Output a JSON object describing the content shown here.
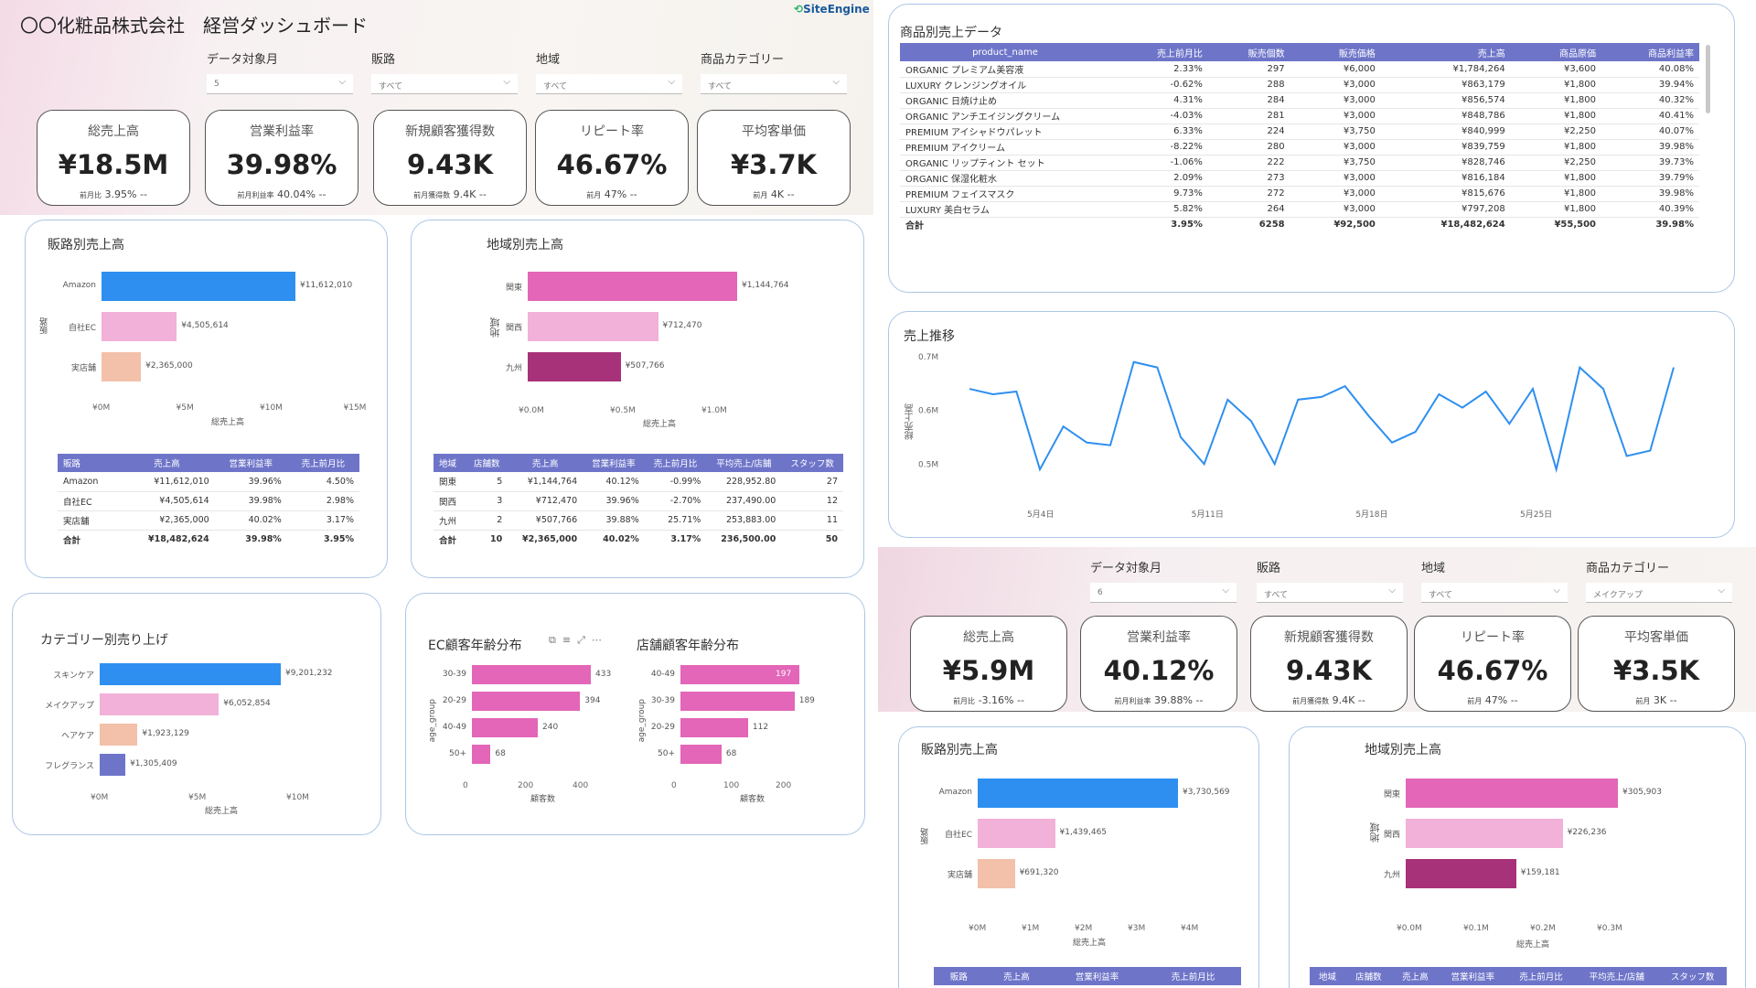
{
  "header": {
    "title": "〇〇化粧品株式会社　経営ダッシュボード",
    "logo": "SiteEngine"
  },
  "colors": {
    "blue": "#2e8ff0",
    "pink": "#f2b1d8",
    "peach": "#f3c0aa",
    "indigo": "#6e75c9",
    "magenta": "#e366b8",
    "plum": "#a8327a"
  },
  "d1": {
    "slicers": [
      {
        "label": "データ対象月",
        "value": "5"
      },
      {
        "label": "販路",
        "value": "すべて"
      },
      {
        "label": "地域",
        "value": "すべて"
      },
      {
        "label": "商品カテゴリー",
        "value": "すべて"
      }
    ],
    "kpis": [
      {
        "title": "総売上高",
        "value": "¥18.5M",
        "sub_label": "前月比",
        "sub_value": "3.95% --"
      },
      {
        "title": "営業利益率",
        "value": "39.98%",
        "sub_label": "前月利益率",
        "sub_value": "40.04% --"
      },
      {
        "title": "新規顧客獲得数",
        "value": "9.43K",
        "sub_label": "前月獲得数",
        "sub_value": "9.4K --"
      },
      {
        "title": "リピート率",
        "value": "46.67%",
        "sub_label": "前月",
        "sub_value": "47% --"
      },
      {
        "title": "平均客単価",
        "value": "¥3.7K",
        "sub_label": "前月",
        "sub_value": "4K --"
      }
    ],
    "channel": {
      "title": "販路別売上高",
      "ylabel": "販路",
      "xlabel": "総売上高",
      "categories": [
        "Amazon",
        "自社EC",
        "実店舗"
      ],
      "values": [
        11612010,
        4505614,
        2365000
      ],
      "labels": [
        "¥11,612,010",
        "¥4,505,614",
        "¥2,365,000"
      ],
      "xticks": [
        "¥0M",
        "¥5M",
        "¥10M",
        "¥15M"
      ],
      "table": {
        "headers": [
          "販路",
          "売上高",
          "営業利益率",
          "売上前月比"
        ],
        "rows": [
          [
            "Amazon",
            "¥11,612,010",
            "39.96%",
            "4.50%"
          ],
          [
            "自社EC",
            "¥4,505,614",
            "39.98%",
            "2.98%"
          ],
          [
            "実店舗",
            "¥2,365,000",
            "40.02%",
            "3.17%"
          ]
        ],
        "total": [
          "合計",
          "¥18,482,624",
          "39.98%",
          "3.95%"
        ]
      }
    },
    "region": {
      "title": "地域別売上高",
      "ylabel": "地域",
      "xlabel": "総売上高",
      "categories": [
        "関東",
        "関西",
        "九州"
      ],
      "values": [
        1144764,
        712470,
        507766
      ],
      "labels": [
        "¥1,144,764",
        "¥712,470",
        "¥507,766"
      ],
      "xticks": [
        "¥0.0M",
        "¥0.5M",
        "¥1.0M"
      ],
      "table": {
        "headers": [
          "地域",
          "店舗数",
          "売上高",
          "営業利益率",
          "売上前月比",
          "平均売上/店舗",
          "スタッフ数"
        ],
        "rows": [
          [
            "関東",
            "5",
            "¥1,144,764",
            "40.12%",
            "-0.99%",
            "228,952.80",
            "27"
          ],
          [
            "関西",
            "3",
            "¥712,470",
            "39.96%",
            "-2.70%",
            "237,490.00",
            "12"
          ],
          [
            "九州",
            "2",
            "¥507,766",
            "39.88%",
            "25.71%",
            "253,883.00",
            "11"
          ]
        ],
        "total": [
          "合計",
          "10",
          "¥2,365,000",
          "40.02%",
          "3.17%",
          "236,500.00",
          "50"
        ]
      }
    },
    "category": {
      "title": "カテゴリー別売り上げ",
      "xlabel": "総売上高",
      "categories": [
        "スキンケア",
        "メイクアップ",
        "ヘアケア",
        "フレグランス"
      ],
      "values": [
        9201232,
        6052854,
        1923129,
        1305409
      ],
      "labels": [
        "¥9,201,232",
        "¥6,052,854",
        "¥1,923,129",
        "¥1,305,409"
      ],
      "xticks": [
        "¥0M",
        "¥5M",
        "¥10M"
      ]
    },
    "ec_age": {
      "title": "EC顧客年齢分布",
      "ylabel": "age_group",
      "xlabel": "顧客数",
      "categories": [
        "30-39",
        "20-29",
        "40-49",
        "50+"
      ],
      "values": [
        433,
        394,
        240,
        68
      ],
      "xticks": [
        "0",
        "200",
        "400"
      ]
    },
    "store_age": {
      "title": "店舗顧客年齢分布",
      "ylabel": "age_group",
      "xlabel": "顧客数",
      "categories": [
        "40-49",
        "30-39",
        "20-29",
        "50+"
      ],
      "values": [
        197,
        189,
        112,
        68
      ],
      "xticks": [
        "0",
        "100",
        "200"
      ]
    },
    "visual_icons": [
      "copy-icon",
      "filter-icon",
      "focus-icon",
      "more-icon"
    ]
  },
  "products": {
    "title": "商品別売上データ",
    "headers": [
      "product_name",
      "売上前月比",
      "販売個数",
      "販売価格",
      "売上高",
      "商品原価",
      "商品利益率"
    ],
    "rows": [
      [
        "ORGANIC プレミアム美容液",
        "2.33%",
        "297",
        "¥6,000",
        "¥1,784,264",
        "¥3,600",
        "40.08%"
      ],
      [
        "LUXURY クレンジングオイル",
        "-0.62%",
        "288",
        "¥3,000",
        "¥863,179",
        "¥1,800",
        "39.94%"
      ],
      [
        "ORGANIC 日焼け止め",
        "4.31%",
        "284",
        "¥3,000",
        "¥856,574",
        "¥1,800",
        "40.32%"
      ],
      [
        "ORGANIC アンチエイジングクリーム",
        "-4.03%",
        "281",
        "¥3,000",
        "¥848,786",
        "¥1,800",
        "40.41%"
      ],
      [
        "PREMIUM アイシャドウパレット",
        "6.33%",
        "224",
        "¥3,750",
        "¥840,999",
        "¥2,250",
        "40.07%"
      ],
      [
        "PREMIUM アイクリーム",
        "-8.22%",
        "280",
        "¥3,000",
        "¥839,759",
        "¥1,800",
        "39.98%"
      ],
      [
        "ORGANIC リップティント セット",
        "-1.06%",
        "222",
        "¥3,750",
        "¥828,746",
        "¥2,250",
        "39.73%"
      ],
      [
        "ORGANIC 保湿化粧水",
        "2.09%",
        "273",
        "¥3,000",
        "¥816,184",
        "¥1,800",
        "39.79%"
      ],
      [
        "PREMIUM フェイスマスク",
        "9.73%",
        "272",
        "¥3,000",
        "¥815,676",
        "¥1,800",
        "39.98%"
      ],
      [
        "LUXURY 美白セラム",
        "5.82%",
        "264",
        "¥3,000",
        "¥797,208",
        "¥1,800",
        "40.39%"
      ]
    ],
    "total": [
      "合計",
      "3.95%",
      "6258",
      "¥92,500",
      "¥18,482,624",
      "¥55,500",
      "39.98%"
    ]
  },
  "trend": {
    "title": "売上推移",
    "ylabel": "総売上高",
    "yticks": [
      "0.7M",
      "0.6M",
      "0.5M"
    ],
    "xticks": [
      "5月4日",
      "5月11日",
      "5月18日",
      "5月25日"
    ]
  },
  "chart_data": [
    {
      "type": "line",
      "title": "売上推移",
      "ylabel": "総売上高",
      "xlabel": "",
      "x": [
        "5/1",
        "5/2",
        "5/3",
        "5/4",
        "5/5",
        "5/6",
        "5/7",
        "5/8",
        "5/9",
        "5/10",
        "5/11",
        "5/12",
        "5/13",
        "5/14",
        "5/15",
        "5/16",
        "5/17",
        "5/18",
        "5/19",
        "5/20",
        "5/21",
        "5/22",
        "5/23",
        "5/24",
        "5/25",
        "5/26",
        "5/27",
        "5/28",
        "5/29",
        "5/30",
        "5/31"
      ],
      "values": [
        0.64,
        0.63,
        0.635,
        0.49,
        0.57,
        0.54,
        0.535,
        0.69,
        0.68,
        0.55,
        0.5,
        0.62,
        0.58,
        0.5,
        0.62,
        0.625,
        0.645,
        0.59,
        0.54,
        0.56,
        0.63,
        0.605,
        0.635,
        0.575,
        0.64,
        0.49,
        0.68,
        0.64,
        0.515,
        0.525,
        0.68
      ],
      "ylim": [
        0.48,
        0.71
      ]
    },
    {
      "type": "bar",
      "title": "販路別売上高",
      "categories": [
        "Amazon",
        "自社EC",
        "実店舗"
      ],
      "values": [
        3730569,
        1439465,
        691320
      ],
      "labels": [
        "¥3,730,569",
        "¥1,439,465",
        "¥691,320"
      ],
      "xticks": [
        "¥0M",
        "¥1M",
        "¥2M",
        "¥3M",
        "¥4M"
      ],
      "ylabel": "販路",
      "xlabel": "総売上高"
    },
    {
      "type": "bar",
      "title": "地域別売上高",
      "categories": [
        "関東",
        "関西",
        "九州"
      ],
      "values": [
        305903,
        226236,
        159181
      ],
      "labels": [
        "¥305,903",
        "¥226,236",
        "¥159,181"
      ],
      "xticks": [
        "¥0.0M",
        "¥0.1M",
        "¥0.2M",
        "¥0.3M"
      ],
      "ylabel": "地域",
      "xlabel": "総売上高"
    }
  ],
  "d2": {
    "slicers": [
      {
        "label": "データ対象月",
        "value": "6"
      },
      {
        "label": "販路",
        "value": "すべて"
      },
      {
        "label": "地域",
        "value": "すべて"
      },
      {
        "label": "商品カテゴリー",
        "value": "メイクアップ"
      }
    ],
    "kpis": [
      {
        "title": "総売上高",
        "value": "¥5.9M",
        "sub_label": "前月比",
        "sub_value": "-3.16% --"
      },
      {
        "title": "営業利益率",
        "value": "40.12%",
        "sub_label": "前月利益率",
        "sub_value": "39.88% --"
      },
      {
        "title": "新規顧客獲得数",
        "value": "9.43K",
        "sub_label": "前月獲得数",
        "sub_value": "9.4K --"
      },
      {
        "title": "リピート率",
        "value": "46.67%",
        "sub_label": "前月",
        "sub_value": "47% --"
      },
      {
        "title": "平均客単価",
        "value": "¥3.5K",
        "sub_label": "前月",
        "sub_value": "3K --"
      }
    ],
    "channel_title": "販路別売上高",
    "region_title": "地域別売上高",
    "channel_headers": [
      "販路",
      "売上高",
      "営業利益率",
      "売上前月比"
    ],
    "region_headers": [
      "地域",
      "店舗数",
      "売上高",
      "営業利益率",
      "売上前月比",
      "平均売上/店舗",
      "スタッフ数"
    ]
  }
}
